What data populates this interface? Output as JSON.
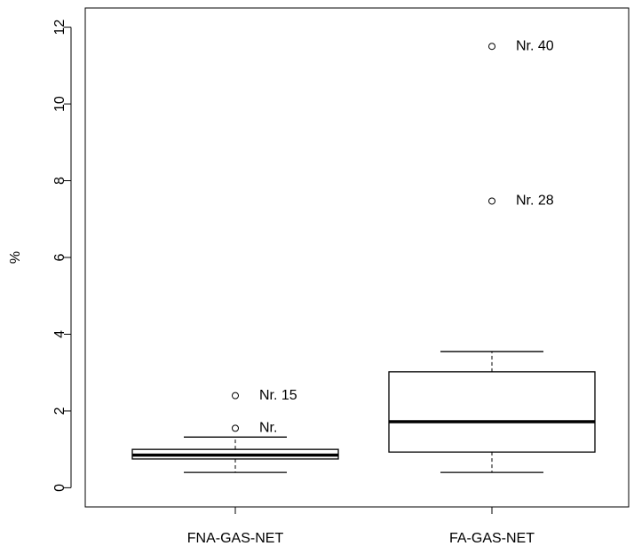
{
  "colors": {
    "background": "#ffffff",
    "stroke": "#000000"
  },
  "chart_data": {
    "type": "boxplot",
    "title": "",
    "xlabel": "",
    "ylabel": "%",
    "ylim": [
      -0.5,
      12.5
    ],
    "yticks": [
      0,
      2,
      4,
      6,
      8,
      10,
      12
    ],
    "ytick_labels": [
      "0",
      "2",
      "4",
      "6",
      "8",
      "10",
      "12"
    ],
    "grid": false,
    "legend": "none",
    "categories": [
      "FNA-GAS-NET",
      "FA-GAS-NET"
    ],
    "boxes": [
      {
        "category": "FNA-GAS-NET",
        "whisker_low": 0.4,
        "q1": 0.75,
        "median": 0.85,
        "q3": 1.0,
        "whisker_high": 1.32,
        "outliers": [
          {
            "value": 2.4,
            "label": "Nr. 15"
          },
          {
            "value": 1.55,
            "label": "Nr."
          }
        ]
      },
      {
        "category": "FA-GAS-NET",
        "whisker_low": 0.4,
        "q1": 0.93,
        "median": 1.72,
        "q3": 3.02,
        "whisker_high": 3.55,
        "outliers": [
          {
            "value": 11.5,
            "label": "Nr. 40"
          },
          {
            "value": 7.47,
            "label": "Nr. 28"
          }
        ]
      }
    ]
  }
}
